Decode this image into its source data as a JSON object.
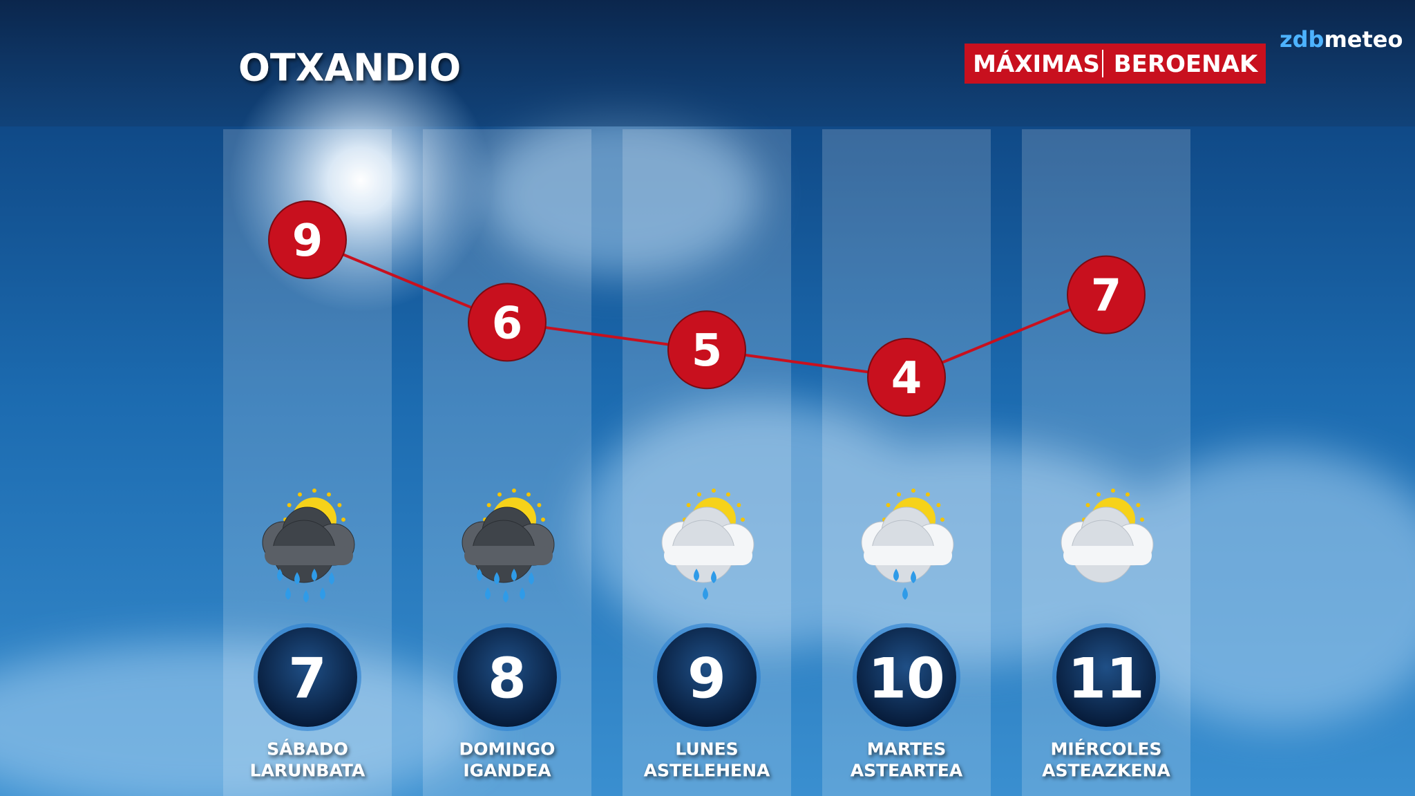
{
  "chart_data": {
    "type": "line",
    "title": "OTXANDIO",
    "badge": [
      "MÁXIMAS",
      "BEROENAK"
    ],
    "logo": [
      "zdb",
      "meteo"
    ],
    "categories": [
      "SÁBADO",
      "DOMINGO",
      "LUNES",
      "MARTES",
      "MIÉRCOLES"
    ],
    "categories_eu": [
      "LARUNBATA",
      "IGANDEA",
      "ASTELEHENA",
      "ASTEARTEA",
      "ASTEAZKENA"
    ],
    "dates": [
      7,
      8,
      9,
      10,
      11
    ],
    "values": [
      9,
      6,
      5,
      4,
      7
    ],
    "color": "#c8101e"
  }
}
